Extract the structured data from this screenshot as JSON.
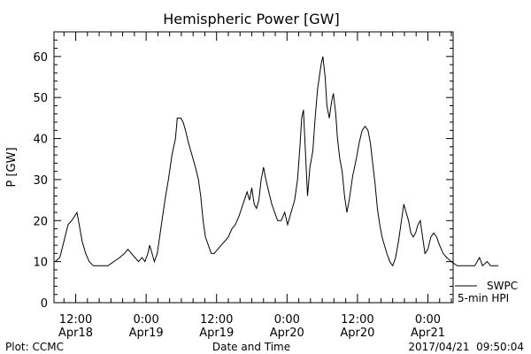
{
  "chart_data": {
    "type": "line",
    "title": "Hemispheric Power [GW]",
    "xlabel": "Date and Time",
    "ylabel": "P [GW]",
    "ylim": [
      0,
      66
    ],
    "xlim_hours": [
      -3.7,
      64.3
    ],
    "y_ticks": [
      0,
      10,
      20,
      30,
      40,
      50,
      60
    ],
    "x_ticks": [
      {
        "hour": 0,
        "time": "12:00",
        "date": "Apr18"
      },
      {
        "hour": 12,
        "time": "0:00",
        "date": "Apr19"
      },
      {
        "hour": 24,
        "time": "12:00",
        "date": "Apr19"
      },
      {
        "hour": 36,
        "time": "0:00",
        "date": "Apr20"
      },
      {
        "hour": 48,
        "time": "12:00",
        "date": "Apr20"
      },
      {
        "hour": 60,
        "time": "0:00",
        "date": "Apr21"
      }
    ],
    "x_reference": "2017-04-18 12:00",
    "series": [
      {
        "name": "",
        "color": "#000000",
        "points": [
          [
            -3.5,
            10
          ],
          [
            -2.7,
            11
          ],
          [
            -2,
            15
          ],
          [
            -1.3,
            19
          ],
          [
            -0.7,
            20
          ],
          [
            -0.2,
            21
          ],
          [
            0.2,
            22
          ],
          [
            0.6,
            19
          ],
          [
            1.1,
            15
          ],
          [
            1.7,
            12
          ],
          [
            2.3,
            10
          ],
          [
            3,
            9
          ],
          [
            4,
            9
          ],
          [
            5.5,
            9
          ],
          [
            6.5,
            10
          ],
          [
            7.5,
            11
          ],
          [
            8.3,
            12
          ],
          [
            8.9,
            13
          ],
          [
            9.5,
            12
          ],
          [
            10.1,
            11
          ],
          [
            10.7,
            10
          ],
          [
            11.3,
            11
          ],
          [
            11.8,
            10
          ],
          [
            12.3,
            12
          ],
          [
            12.6,
            14
          ],
          [
            13,
            12
          ],
          [
            13.4,
            10
          ],
          [
            13.9,
            12
          ],
          [
            14.5,
            18
          ],
          [
            15.2,
            25
          ],
          [
            15.8,
            30
          ],
          [
            16.4,
            36
          ],
          [
            17,
            40
          ],
          [
            17.3,
            45
          ],
          [
            17.9,
            45
          ],
          [
            18.3,
            44
          ],
          [
            18.7,
            42
          ],
          [
            19.2,
            39
          ],
          [
            19.8,
            36
          ],
          [
            20.4,
            33
          ],
          [
            20.9,
            30
          ],
          [
            21.3,
            26
          ],
          [
            21.7,
            20
          ],
          [
            22.1,
            16
          ],
          [
            22.6,
            14
          ],
          [
            23.1,
            12
          ],
          [
            23.6,
            12
          ],
          [
            24.2,
            13
          ],
          [
            24.8,
            14
          ],
          [
            25.4,
            15
          ],
          [
            26,
            16
          ],
          [
            26.6,
            18
          ],
          [
            27.2,
            19
          ],
          [
            27.8,
            21
          ],
          [
            28.5,
            24
          ],
          [
            29.2,
            27
          ],
          [
            29.6,
            25
          ],
          [
            30,
            28
          ],
          [
            30.4,
            24
          ],
          [
            30.8,
            23
          ],
          [
            31.2,
            25
          ],
          [
            31.6,
            30
          ],
          [
            32,
            33
          ],
          [
            32.4,
            30
          ],
          [
            32.9,
            27
          ],
          [
            33.4,
            24
          ],
          [
            33.9,
            22
          ],
          [
            34.4,
            20
          ],
          [
            35,
            20
          ],
          [
            35.6,
            22
          ],
          [
            36.1,
            19
          ],
          [
            36.7,
            22
          ],
          [
            37.3,
            25
          ],
          [
            37.8,
            30
          ],
          [
            38.2,
            38
          ],
          [
            38.5,
            45
          ],
          [
            38.8,
            47
          ],
          [
            39.2,
            35
          ],
          [
            39.5,
            26
          ],
          [
            39.9,
            33
          ],
          [
            40.4,
            37
          ],
          [
            40.8,
            45
          ],
          [
            41.2,
            52
          ],
          [
            41.5,
            55
          ],
          [
            41.8,
            58
          ],
          [
            42.1,
            60
          ],
          [
            42.5,
            55
          ],
          [
            42.8,
            48
          ],
          [
            43.2,
            45
          ],
          [
            43.6,
            49
          ],
          [
            43.9,
            51
          ],
          [
            44.3,
            46
          ],
          [
            44.6,
            40
          ],
          [
            45,
            35
          ],
          [
            45.4,
            32
          ],
          [
            45.8,
            26
          ],
          [
            46.2,
            22
          ],
          [
            46.6,
            25
          ],
          [
            47.2,
            31
          ],
          [
            47.8,
            35
          ],
          [
            48.3,
            39
          ],
          [
            48.8,
            42
          ],
          [
            49.3,
            43
          ],
          [
            49.8,
            42
          ],
          [
            50.2,
            39
          ],
          [
            50.6,
            34
          ],
          [
            51,
            29
          ],
          [
            51.4,
            23
          ],
          [
            51.8,
            19
          ],
          [
            52.2,
            16
          ],
          [
            52.6,
            14
          ],
          [
            53,
            12
          ],
          [
            53.5,
            10
          ],
          [
            54,
            9
          ],
          [
            54.5,
            11
          ],
          [
            55,
            15
          ],
          [
            55.5,
            20
          ],
          [
            55.9,
            24
          ],
          [
            56.3,
            22
          ],
          [
            56.7,
            20
          ],
          [
            57.1,
            17
          ],
          [
            57.5,
            16
          ],
          [
            57.9,
            17
          ],
          [
            58.3,
            19
          ],
          [
            58.7,
            20
          ],
          [
            59.1,
            16
          ],
          [
            59.5,
            12
          ],
          [
            60,
            13
          ],
          [
            60.5,
            16
          ],
          [
            61,
            17
          ],
          [
            61.5,
            16
          ],
          [
            62,
            14
          ],
          [
            62.6,
            12
          ],
          [
            63.2,
            11
          ],
          [
            64,
            10
          ],
          [
            65,
            9
          ],
          [
            66.5,
            9
          ],
          [
            68,
            9
          ],
          [
            68.8,
            11
          ],
          [
            69.3,
            9
          ],
          [
            70.1,
            10
          ],
          [
            70.7,
            9
          ],
          [
            72,
            9
          ]
        ]
      }
    ],
    "legend": [
      {
        "label": "SWPC",
        "line": true
      },
      {
        "label": "5-min HPI",
        "line": false
      }
    ]
  },
  "footer": {
    "left": "Plot: CCMC",
    "center": "Date and Time",
    "right": "2017/04/21  09:50:04"
  }
}
